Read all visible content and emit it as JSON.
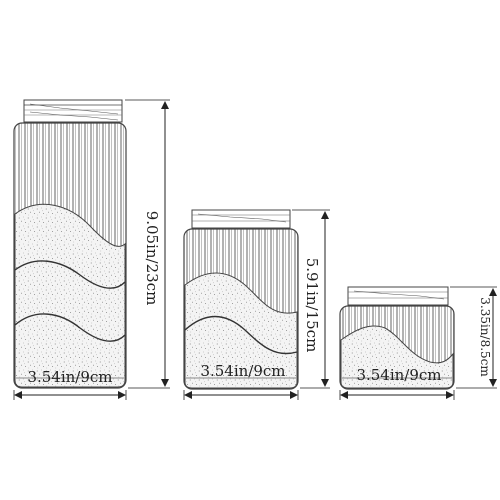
{
  "diagram": {
    "containers": [
      {
        "id": "large",
        "width_label": "3.54in/9cm",
        "height_label": "9.05in/23cm"
      },
      {
        "id": "medium",
        "width_label": "3.54in/9cm",
        "height_label": "5.91in/15cm"
      },
      {
        "id": "small",
        "width_label": "3.54in/9cm",
        "height_label": "3.35in/8.5cm"
      }
    ]
  }
}
